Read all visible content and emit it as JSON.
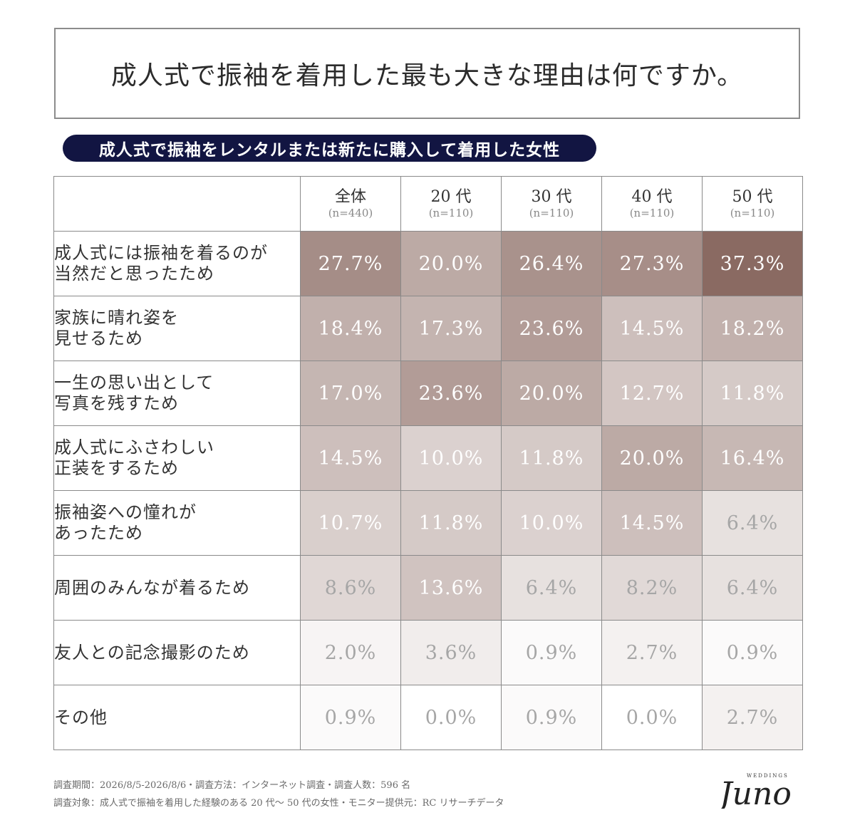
{
  "title": "成人式で振袖を着用した最も大きな理由は何ですか。",
  "subtitle": "成人式で振袖をレンタルまたは新たに購入して着用した女性",
  "chart_data": {
    "type": "table",
    "columns": [
      {
        "name": "全体",
        "n": "(n=440)"
      },
      {
        "name": "20 代",
        "n": "(n=110)"
      },
      {
        "name": "30 代",
        "n": "(n=110)"
      },
      {
        "name": "40 代",
        "n": "(n=110)"
      },
      {
        "name": "50 代",
        "n": "(n=110)"
      }
    ],
    "rows": [
      {
        "label": "成人式には振袖を着るのが\n当然だと思ったため",
        "values": [
          27.7,
          20.0,
          26.4,
          27.3,
          37.3
        ],
        "display": [
          "27.7%",
          "20.0%",
          "26.4%",
          "27.3%",
          "37.3%"
        ]
      },
      {
        "label": "家族に晴れ姿を\n見せるため",
        "values": [
          18.4,
          17.3,
          23.6,
          14.5,
          18.2
        ],
        "display": [
          "18.4%",
          "17.3%",
          "23.6%",
          "14.5%",
          "18.2%"
        ]
      },
      {
        "label": "一生の思い出として\n写真を残すため",
        "values": [
          17.0,
          23.6,
          20.0,
          12.7,
          11.8
        ],
        "display": [
          "17.0%",
          "23.6%",
          "20.0%",
          "12.7%",
          "11.8%"
        ]
      },
      {
        "label": "成人式にふさわしい\n正装をするため",
        "values": [
          14.5,
          10.0,
          11.8,
          20.0,
          16.4
        ],
        "display": [
          "14.5%",
          "10.0%",
          "11.8%",
          "20.0%",
          "16.4%"
        ]
      },
      {
        "label": "振袖姿への憧れが\nあったため",
        "values": [
          10.7,
          11.8,
          10.0,
          14.5,
          6.4
        ],
        "display": [
          "10.7%",
          "11.8%",
          "10.0%",
          "14.5%",
          "6.4%"
        ]
      },
      {
        "label": "周囲のみんなが着るため",
        "values": [
          8.6,
          13.6,
          6.4,
          8.2,
          6.4
        ],
        "display": [
          "8.6%",
          "13.6%",
          "6.4%",
          "8.2%",
          "6.4%"
        ]
      },
      {
        "label": "友人との記念撮影のため",
        "values": [
          2.0,
          3.6,
          0.9,
          2.7,
          0.9
        ],
        "display": [
          "2.0%",
          "3.6%",
          "0.9%",
          "2.7%",
          "0.9%"
        ]
      },
      {
        "label": "その他",
        "values": [
          0.9,
          0.0,
          0.9,
          0.0,
          2.7
        ],
        "display": [
          "0.9%",
          "0.0%",
          "0.9%",
          "0.0%",
          "2.7%"
        ]
      }
    ],
    "colors": {
      "heat_high": "#8a6a62",
      "heat_low": "#ffffff",
      "text_light": "#ffffff",
      "text_dark": "#a6a6a6",
      "pill": "#121542"
    }
  },
  "footer": {
    "line1": "調査期間：2026/8/5-2026/8/6・調査方法：インターネット調査・調査人数：596 名",
    "line2": "調査対象：成人式で振袖を着用した経験のある 20 代～ 50 代の女性・モニター提供元：RC リサーチデータ"
  },
  "logo": {
    "brand": "Juno",
    "sub": "WEDDINGS"
  }
}
